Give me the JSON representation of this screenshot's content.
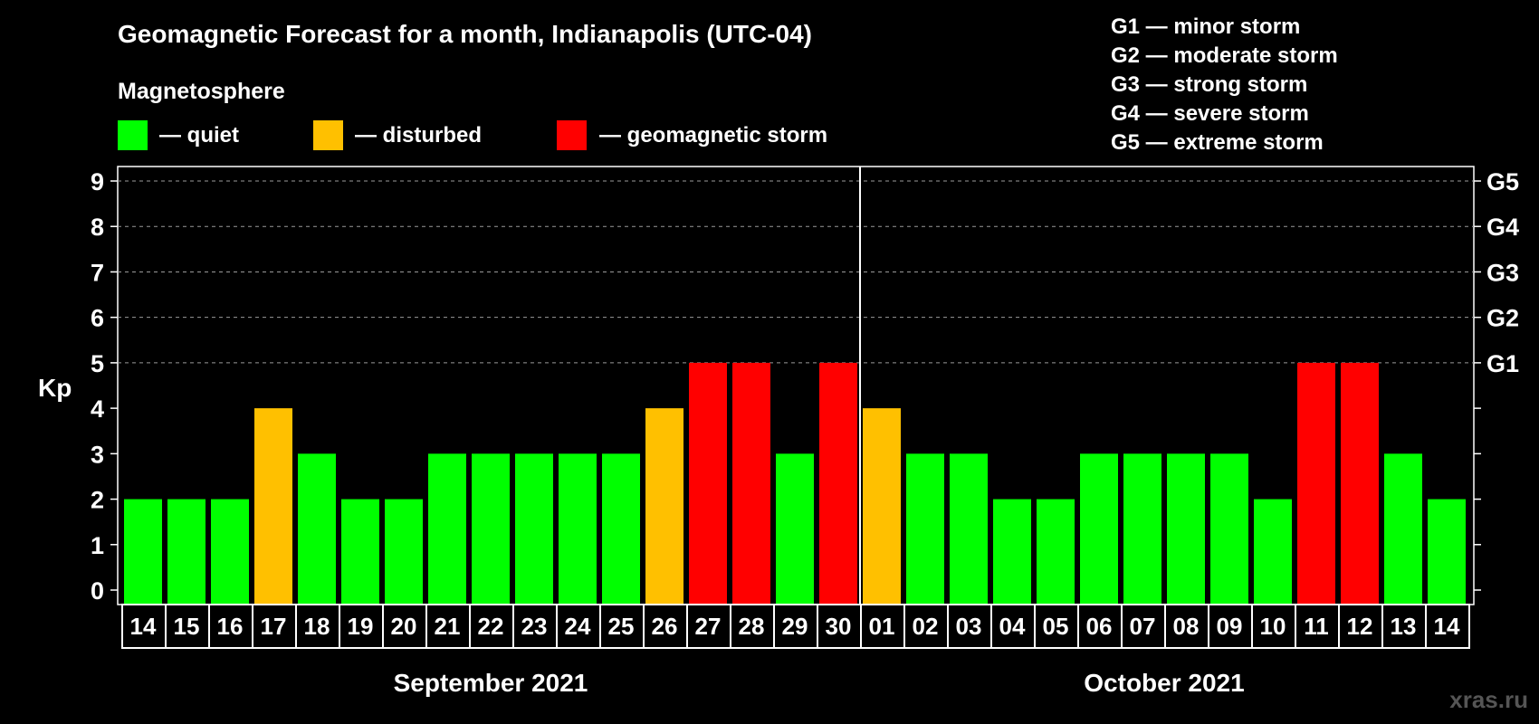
{
  "chart_data": {
    "type": "bar",
    "title": "Geomagnetic Forecast for a month, Indianapolis (UTC-04)",
    "legend_title": "Magnetosphere",
    "legend": [
      {
        "key": "quiet",
        "label": "— quiet",
        "color": "#00ff00"
      },
      {
        "key": "disturbed",
        "label": "— disturbed",
        "color": "#ffc000"
      },
      {
        "key": "storm",
        "label": "— geomagnetic storm",
        "color": "#ff0000"
      }
    ],
    "g_scale": [
      "G1 — minor storm",
      "G2 — moderate storm",
      "G3 — strong storm",
      "G4 — severe storm",
      "G5 — extreme storm"
    ],
    "ylabel": "Kp",
    "ylim": [
      0,
      9
    ],
    "y_ticks": [
      0,
      1,
      2,
      3,
      4,
      5,
      6,
      7,
      8,
      9
    ],
    "right_axis_labels": [
      {
        "value": 5,
        "label": "G1"
      },
      {
        "value": 6,
        "label": "G2"
      },
      {
        "value": 7,
        "label": "G3"
      },
      {
        "value": 8,
        "label": "G4"
      },
      {
        "value": 9,
        "label": "G5"
      }
    ],
    "categories": [
      "14",
      "15",
      "16",
      "17",
      "18",
      "19",
      "20",
      "21",
      "22",
      "23",
      "24",
      "25",
      "26",
      "27",
      "28",
      "29",
      "30",
      "01",
      "02",
      "03",
      "04",
      "05",
      "06",
      "07",
      "08",
      "09",
      "10",
      "11",
      "12",
      "13",
      "14"
    ],
    "values": [
      2,
      2,
      2,
      4,
      3,
      2,
      2,
      3,
      3,
      3,
      3,
      3,
      4,
      5,
      5,
      3,
      5,
      4,
      3,
      3,
      2,
      2,
      3,
      3,
      3,
      3,
      2,
      5,
      5,
      3,
      2
    ],
    "months": [
      {
        "label": "September 2021",
        "start": 0,
        "end": 16
      },
      {
        "label": "October 2021",
        "start": 17,
        "end": 30
      }
    ],
    "gridlines": [
      5,
      6,
      7,
      8,
      9
    ],
    "color_thresholds": {
      "quiet_max": 3,
      "disturbed": 4,
      "storm_min": 5
    }
  },
  "watermark": "xras.ru"
}
